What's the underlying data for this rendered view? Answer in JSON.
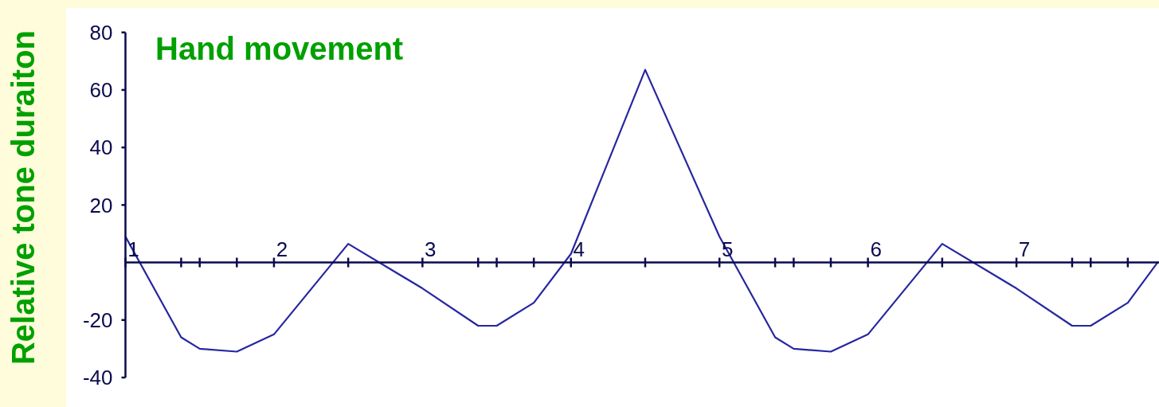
{
  "chart_data": {
    "type": "line",
    "title": "Hand movement",
    "ylabel": "Relative tone duraiton",
    "x": [
      1,
      1.375,
      1.5,
      1.75,
      2,
      2.5,
      3,
      3.375,
      3.5,
      3.75,
      4,
      4.5,
      5,
      5.375,
      5.5,
      5.75,
      6,
      6.5,
      7,
      7.375,
      7.5,
      7.75,
      7.95
    ],
    "series": [
      {
        "color": "#2626a0",
        "values": [
          9,
          -26,
          -30,
          -31,
          -25,
          6.5,
          -9,
          -22,
          -22,
          -14,
          3,
          67,
          9,
          -26,
          -30,
          -31,
          -25,
          6.5,
          -9,
          -22,
          -22,
          -14,
          0
        ]
      }
    ],
    "xlim": [
      1,
      7.96
    ],
    "xticks": [
      1,
      {
        "value": 1.375,
        "label": null
      },
      {
        "value": 1.5,
        "label": null
      },
      {
        "value": 1.75,
        "label": null
      },
      2,
      {
        "value": 2.5,
        "label": null
      },
      3,
      {
        "value": 3.375,
        "label": null
      },
      {
        "value": 3.5,
        "label": null
      },
      {
        "value": 3.75,
        "label": null
      },
      4,
      {
        "value": 4.5,
        "label": null
      },
      5,
      {
        "value": 5.375,
        "label": null
      },
      {
        "value": 5.5,
        "label": null
      },
      {
        "value": 5.75,
        "label": null
      },
      6,
      {
        "value": 6.5,
        "label": null
      },
      7,
      {
        "value": 7.375,
        "label": null
      },
      {
        "value": 7.5,
        "label": null
      },
      {
        "value": 7.75,
        "label": null
      }
    ],
    "ylim": [
      -40,
      80
    ],
    "yticks": [
      -40,
      -20,
      20,
      40,
      60,
      80
    ]
  }
}
